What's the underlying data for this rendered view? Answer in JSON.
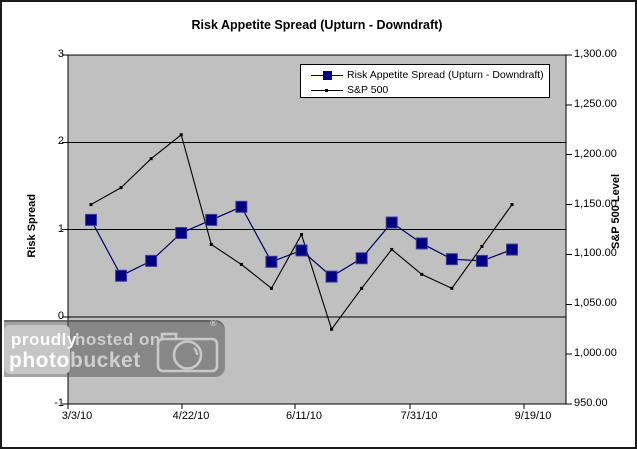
{
  "chart_data": {
    "type": "line",
    "title": "Risk Appetite Spread (Upturn - Downdraft)",
    "left_ylabel": "Risk Spread",
    "right_ylabel": "S&P 500 Level",
    "left_ylim": [
      -1,
      3
    ],
    "right_ylim": [
      950,
      1300
    ],
    "left_ticks": [
      "3",
      "2",
      "1",
      "0",
      "-1"
    ],
    "right_ticks": [
      "1,300.00",
      "1,250.00",
      "1,200.00",
      "1,150.00",
      "1,100.00",
      "1,050.00",
      "1,000.00",
      "950.00"
    ],
    "x_tick_labels": [
      "3/3/10",
      "4/22/10",
      "6/11/10",
      "7/31/10",
      "9/19/10"
    ],
    "grid": "horizontal-on",
    "legend_position": "top-right-inside",
    "plot_bg_color": "#c0c0c0",
    "series": [
      {
        "name": "Risk Appetite Spread (Upturn - Downdraft)",
        "axis": "left",
        "color": "#000080",
        "marker": "square",
        "values": [
          1.11,
          0.47,
          0.64,
          0.96,
          1.11,
          1.26,
          0.63,
          0.76,
          0.46,
          0.67,
          1.08,
          0.84,
          0.66,
          0.64,
          0.77
        ]
      },
      {
        "name": "S&P 500",
        "axis": "right",
        "color": "#000000",
        "marker": "small-square",
        "values": [
          1150,
          1167,
          1196,
          1220,
          1110,
          1090,
          1066,
          1120,
          1025,
          1066,
          1105,
          1080,
          1066,
          1108,
          1150
        ]
      }
    ]
  },
  "watermark": {
    "word1": "proudly",
    "word2": "hosted on",
    "word3": "photo",
    "word4": "bucket",
    "registered": "®"
  }
}
